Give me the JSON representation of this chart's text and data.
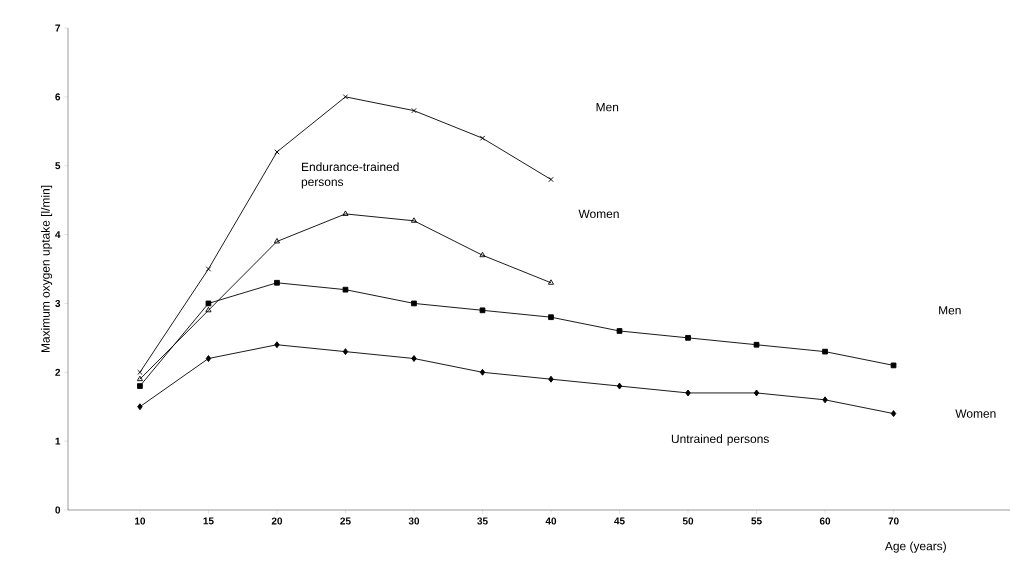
{
  "chart_data": {
    "type": "line",
    "ylabel": "Maximum oxygen uptake [l/min]",
    "xlabel": "Age (years)",
    "categories": [
      "10",
      "15",
      "20",
      "25",
      "30",
      "35",
      "40",
      "45",
      "50",
      "55",
      "60",
      "70"
    ],
    "ylim": [
      0,
      7
    ],
    "yticks": [
      0,
      1,
      2,
      3,
      4,
      5,
      6,
      7
    ],
    "grid": false,
    "series": [
      {
        "name": "Men",
        "color": "#000000",
        "marker": "cross",
        "values": [
          2.0,
          3.5,
          5.2,
          6.0,
          5.8,
          5.4,
          4.8,
          null,
          null,
          null,
          null,
          null
        ]
      },
      {
        "name": "Women",
        "color": "#000000",
        "marker": "triangle",
        "values": [
          1.9,
          2.9,
          3.9,
          4.3,
          4.2,
          3.7,
          3.3,
          null,
          null,
          null,
          null,
          null
        ]
      },
      {
        "name": "Men",
        "color": "#000000",
        "marker": "square",
        "values": [
          1.8,
          3.0,
          3.3,
          3.2,
          3.0,
          2.9,
          2.8,
          2.6,
          2.5,
          2.4,
          2.3,
          2.1
        ]
      },
      {
        "name": "Women",
        "color": "#000000",
        "marker": "diamond",
        "values": [
          1.5,
          2.2,
          2.4,
          2.3,
          2.2,
          2.0,
          1.9,
          1.8,
          1.7,
          1.7,
          1.6,
          1.4
        ]
      }
    ],
    "annotations": [
      "Endurance-trained persons",
      "Untrained persons"
    ]
  }
}
